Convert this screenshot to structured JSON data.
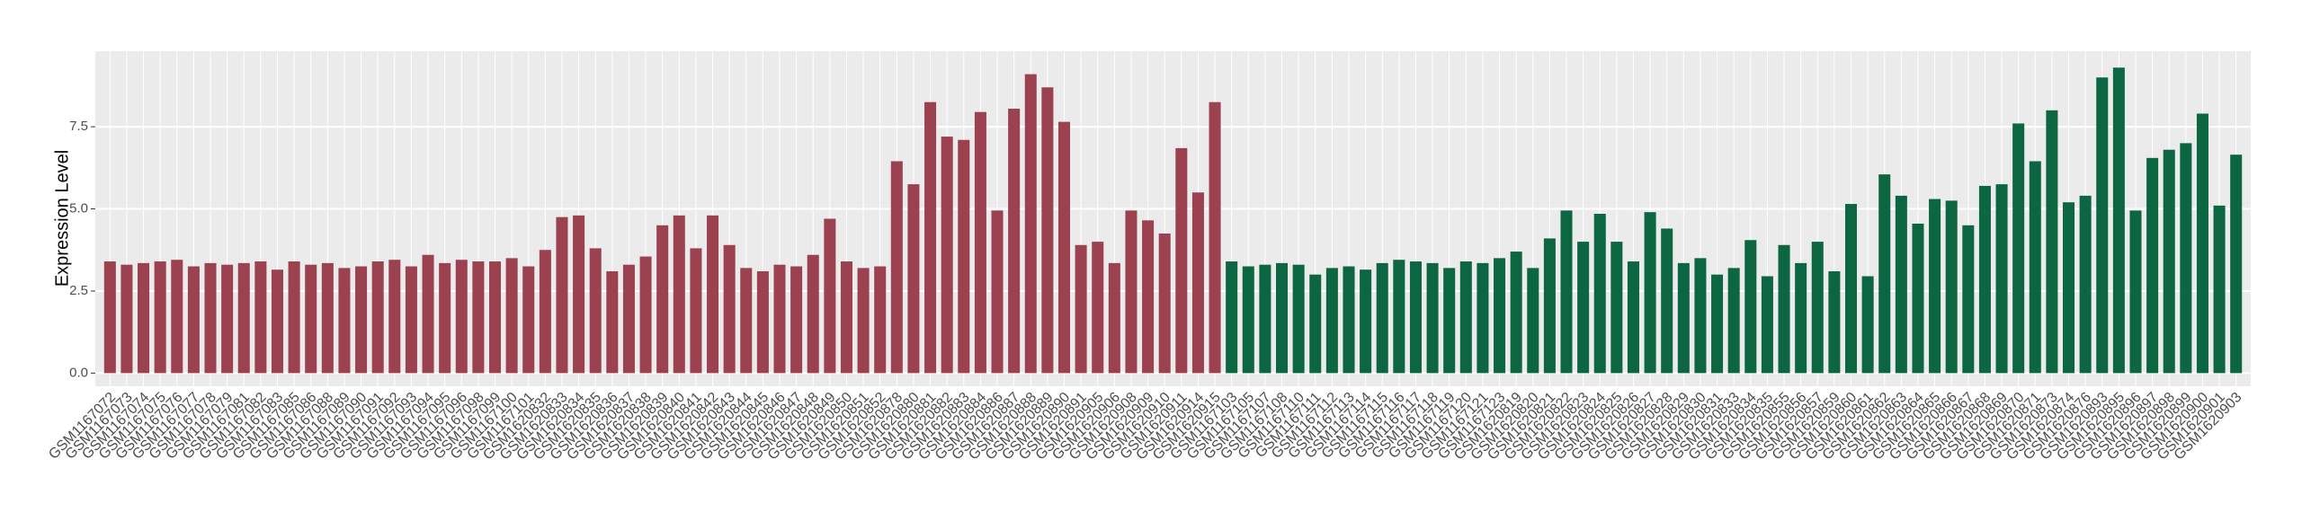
{
  "chart_data": {
    "type": "bar",
    "y_label": "Expression Level",
    "ylim": [
      -0.4,
      9.8
    ],
    "yticks": [
      {
        "value": 0,
        "label": "0.0"
      },
      {
        "value": 2.5,
        "label": "2.5"
      },
      {
        "value": 5,
        "label": "5.0"
      },
      {
        "value": 7.5,
        "label": "7.5"
      }
    ],
    "grid": true,
    "series": [
      {
        "color": "#9b4150",
        "categories": [
          "GSM1167072",
          "GSM1167073",
          "GSM1167074",
          "GSM1167075",
          "GSM1167076",
          "GSM1167077",
          "GSM1167078",
          "GSM1167079",
          "GSM1167081",
          "GSM1167082",
          "GSM1167083",
          "GSM1167085",
          "GSM1167086",
          "GSM1167088",
          "GSM1167089",
          "GSM1167090",
          "GSM1167091",
          "GSM1167092",
          "GSM1167093",
          "GSM1167094",
          "GSM1167095",
          "GSM1167096",
          "GSM1167098",
          "GSM1167099",
          "GSM1167100",
          "GSM1167101",
          "GSM1620832",
          "GSM1620833",
          "GSM1620834",
          "GSM1620835",
          "GSM1620836",
          "GSM1620837",
          "GSM1620838",
          "GSM1620839",
          "GSM1620840",
          "GSM1620841",
          "GSM1620842",
          "GSM1620843",
          "GSM1620844",
          "GSM1620845",
          "GSM1620846",
          "GSM1620847",
          "GSM1620848",
          "GSM1620849",
          "GSM1620850",
          "GSM1620851",
          "GSM1620852",
          "GSM1620878",
          "GSM1620880",
          "GSM1620881",
          "GSM1620882",
          "GSM1620883",
          "GSM1620884",
          "GSM1620886",
          "GSM1620887",
          "GSM1620888",
          "GSM1620889",
          "GSM1620890",
          "GSM1620891",
          "GSM1620905",
          "GSM1620906",
          "GSM1620908",
          "GSM1620909",
          "GSM1620910",
          "GSM1620911",
          "GSM1620914",
          "GSM1620915"
        ],
        "values": [
          3.4,
          3.3,
          3.35,
          3.4,
          3.45,
          3.25,
          3.35,
          3.3,
          3.35,
          3.4,
          3.15,
          3.4,
          3.3,
          3.35,
          3.2,
          3.25,
          3.4,
          3.45,
          3.25,
          3.6,
          3.35,
          3.45,
          3.4,
          3.4,
          3.5,
          3.25,
          3.75,
          4.75,
          4.8,
          3.8,
          3.1,
          3.3,
          3.55,
          4.5,
          4.8,
          3.8,
          4.8,
          3.9,
          3.2,
          3.1,
          3.3,
          3.25,
          3.6,
          4.7,
          3.4,
          3.2,
          3.25,
          6.45,
          5.75,
          8.25,
          7.2,
          7.1,
          7.95,
          4.95,
          8.05,
          9.1,
          8.7,
          7.65,
          3.9,
          4.0,
          3.35,
          4.95,
          4.65,
          4.25,
          6.85,
          5.5,
          8.25
        ]
      },
      {
        "color": "#0b6641",
        "categories": [
          "GSM1167103",
          "GSM1167105",
          "GSM1167107",
          "GSM1167108",
          "GSM1167110",
          "GSM1167111",
          "GSM1167112",
          "GSM1167113",
          "GSM1167114",
          "GSM1167115",
          "GSM1167116",
          "GSM1167117",
          "GSM1167118",
          "GSM1167119",
          "GSM1167120",
          "GSM1167121",
          "GSM1167123",
          "GSM1620819",
          "GSM1620820",
          "GSM1620821",
          "GSM1620822",
          "GSM1620823",
          "GSM1620824",
          "GSM1620825",
          "GSM1620826",
          "GSM1620827",
          "GSM1620828",
          "GSM1620829",
          "GSM1620830",
          "GSM1620831",
          "GSM1620833",
          "GSM1620834",
          "GSM1620835",
          "GSM1620855",
          "GSM1620856",
          "GSM1620857",
          "GSM1620859",
          "GSM1620860",
          "GSM1620861",
          "GSM1620862",
          "GSM1620863",
          "GSM1620864",
          "GSM1620865",
          "GSM1620866",
          "GSM1620867",
          "GSM1620868",
          "GSM1620869",
          "GSM1620870",
          "GSM1620871",
          "GSM1620873",
          "GSM1620874",
          "GSM1620876",
          "GSM1620893",
          "GSM1620895",
          "GSM1620896",
          "GSM1620897",
          "GSM1620898",
          "GSM1620899",
          "GSM1620900",
          "GSM1620901",
          "GSM1620903"
        ],
        "values": [
          3.4,
          3.25,
          3.3,
          3.35,
          3.3,
          3.0,
          3.2,
          3.25,
          3.15,
          3.35,
          3.45,
          3.4,
          3.35,
          3.2,
          3.4,
          3.35,
          3.5,
          3.7,
          3.2,
          4.1,
          4.95,
          4.0,
          4.85,
          4.0,
          3.4,
          4.9,
          4.4,
          3.35,
          3.5,
          3.0,
          3.2,
          4.05,
          2.95,
          3.9,
          3.35,
          4.0,
          3.1,
          5.15,
          2.95,
          6.05,
          5.4,
          4.55,
          5.3,
          5.25,
          4.5,
          5.7,
          5.75,
          7.6,
          6.45,
          8.0,
          5.2,
          5.4,
          9.0,
          9.3,
          4.95,
          6.55,
          6.8,
          7.0,
          7.9,
          5.1,
          6.65
        ]
      }
    ]
  }
}
